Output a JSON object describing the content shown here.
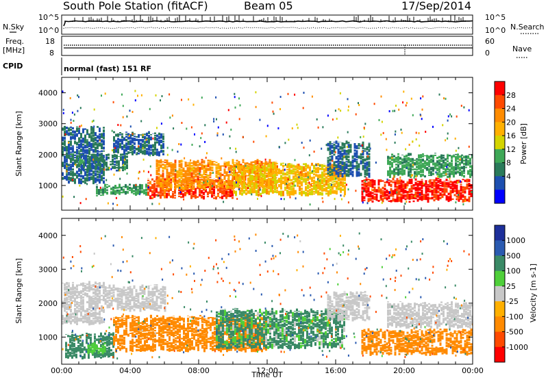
{
  "header": {
    "title": "South Pole Station (fitACF)",
    "beam": "Beam 05",
    "date": "17/Sep/2014"
  },
  "top_panels": {
    "nsky_label": "N.Sky",
    "nsearch_label": "N.Search",
    "nsky_ticks": [
      "10^5",
      "10^0"
    ],
    "nsky_right_ticks": [
      "10^5",
      "10^0"
    ],
    "freq_label_1": "Freq.",
    "freq_label_2": "[MHz]",
    "freq_ticks": [
      "18",
      "8"
    ],
    "nave_ticks": [
      "60",
      "0"
    ],
    "nave_label": "Nave",
    "cpid_label": "CPID",
    "cpid_text": "normal (fast) 151 RF"
  },
  "axes": {
    "ylabel": "Slant Range [km]",
    "xlabel": "Time UT",
    "y_ticks": [
      "4000",
      "3000",
      "2000",
      "1000"
    ],
    "x_ticks": [
      "00:00",
      "04:00",
      "08:00",
      "12:00",
      "16:00",
      "20:00",
      "00:00"
    ]
  },
  "power_scale": {
    "label": "Power [dB]",
    "ticks": [
      "28",
      "24",
      "20",
      "16",
      "12",
      "8",
      "4"
    ],
    "colors": [
      "#ff0000",
      "#ff4a00",
      "#ff8c00",
      "#ffb000",
      "#d4d400",
      "#3fa857",
      "#2a7a5a",
      "#1d4fb0",
      "#0000ff"
    ]
  },
  "velocity_scale": {
    "label": "Velocity [m s-1]",
    "ticks": [
      "1000",
      "500",
      "100",
      "25",
      "-25",
      "-100",
      "-500",
      "-1000"
    ],
    "colors": [
      "#1d2f9a",
      "#2a5ab0",
      "#3a8a66",
      "#4fcf3a",
      "#c8c8c8",
      "#ffb000",
      "#ff8a00",
      "#ff4a00",
      "#ff0000"
    ]
  },
  "chart_data": [
    {
      "type": "heatmap",
      "title": "Power",
      "xlabel": "Time UT",
      "ylabel": "Slant Range [km]",
      "xlim": [
        0,
        24
      ],
      "ylim": [
        200,
        4500
      ],
      "colorbar_label": "Power [dB]",
      "clim": [
        0,
        30
      ],
      "regions": [
        {
          "t0": 0.0,
          "t1": 2.5,
          "r0": 1100,
          "r1": 2900,
          "value": 6
        },
        {
          "t0": 1.0,
          "t1": 3.8,
          "r0": 1500,
          "r1": 2000,
          "value": 7
        },
        {
          "t0": 2.0,
          "t1": 5.0,
          "r0": 700,
          "r1": 1000,
          "value": 10
        },
        {
          "t0": 3.0,
          "t1": 6.0,
          "r0": 2000,
          "r1": 2700,
          "value": 5
        },
        {
          "t0": 5.0,
          "t1": 10.0,
          "r0": 600,
          "r1": 1200,
          "value": 27
        },
        {
          "t0": 5.5,
          "t1": 12.5,
          "r0": 900,
          "r1": 1800,
          "value": 22
        },
        {
          "t0": 10.0,
          "t1": 16.5,
          "r0": 700,
          "r1": 1700,
          "value": 18
        },
        {
          "t0": 15.5,
          "t1": 18.0,
          "r0": 1300,
          "r1": 2400,
          "value": 6
        },
        {
          "t0": 17.5,
          "t1": 24.0,
          "r0": 500,
          "r1": 1200,
          "value": 29
        },
        {
          "t0": 19.0,
          "t1": 24.0,
          "r0": 1300,
          "r1": 2000,
          "value": 10
        }
      ]
    },
    {
      "type": "heatmap",
      "title": "Velocity",
      "xlabel": "Time UT",
      "ylabel": "Slant Range [km]",
      "xlim": [
        0,
        24
      ],
      "ylim": [
        200,
        4500
      ],
      "colorbar_label": "Velocity [m s-1]",
      "clim": [
        -1000,
        1000
      ],
      "regions": [
        {
          "t0": 0.0,
          "t1": 2.5,
          "r0": 1400,
          "r1": 2600,
          "value": 0
        },
        {
          "t0": 0.2,
          "t1": 3.0,
          "r0": 400,
          "r1": 1100,
          "value": 300
        },
        {
          "t0": 1.5,
          "t1": 2.5,
          "r0": 500,
          "r1": 800,
          "value": 80
        },
        {
          "t0": 2.5,
          "t1": 6.0,
          "r0": 1800,
          "r1": 2500,
          "value": 0
        },
        {
          "t0": 3.0,
          "t1": 12.0,
          "r0": 600,
          "r1": 1600,
          "value": -300
        },
        {
          "t0": 9.0,
          "t1": 16.5,
          "r0": 700,
          "r1": 1800,
          "value": 200
        },
        {
          "t0": 15.5,
          "t1": 18.0,
          "r0": 1500,
          "r1": 2300,
          "value": 0
        },
        {
          "t0": 17.5,
          "t1": 24.0,
          "r0": 500,
          "r1": 1200,
          "value": -300
        },
        {
          "t0": 19.0,
          "t1": 24.0,
          "r0": 1300,
          "r1": 2000,
          "value": 0
        }
      ]
    }
  ]
}
